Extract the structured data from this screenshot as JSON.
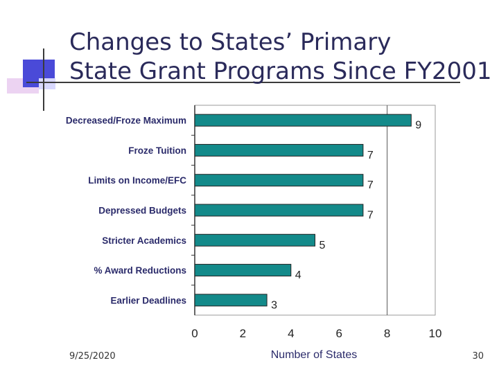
{
  "slide": {
    "title_line1": "Changes to States’ Primary",
    "title_line2": "State Grant Programs Since FY2001",
    "date": "9/25/2020",
    "page_number": "30"
  },
  "colors": {
    "bar": "#138a8a",
    "title": "#2a2a5a"
  },
  "chart_data": {
    "type": "bar",
    "orientation": "horizontal",
    "title": "",
    "categories": [
      "Decreased/Froze Maximum",
      "Froze Tuition",
      "Limits on Income/EFC",
      "Depressed Budgets",
      "Stricter Academics",
      "% Award Reductions",
      "Earlier Deadlines"
    ],
    "values": [
      9,
      7,
      7,
      7,
      5,
      4,
      3
    ],
    "xlabel": "Number of States",
    "ylabel": "",
    "xlim": [
      0,
      10
    ],
    "xticks": [
      0,
      2,
      4,
      6,
      8,
      10
    ],
    "data_labels": true,
    "grid": false,
    "legend": "none"
  }
}
